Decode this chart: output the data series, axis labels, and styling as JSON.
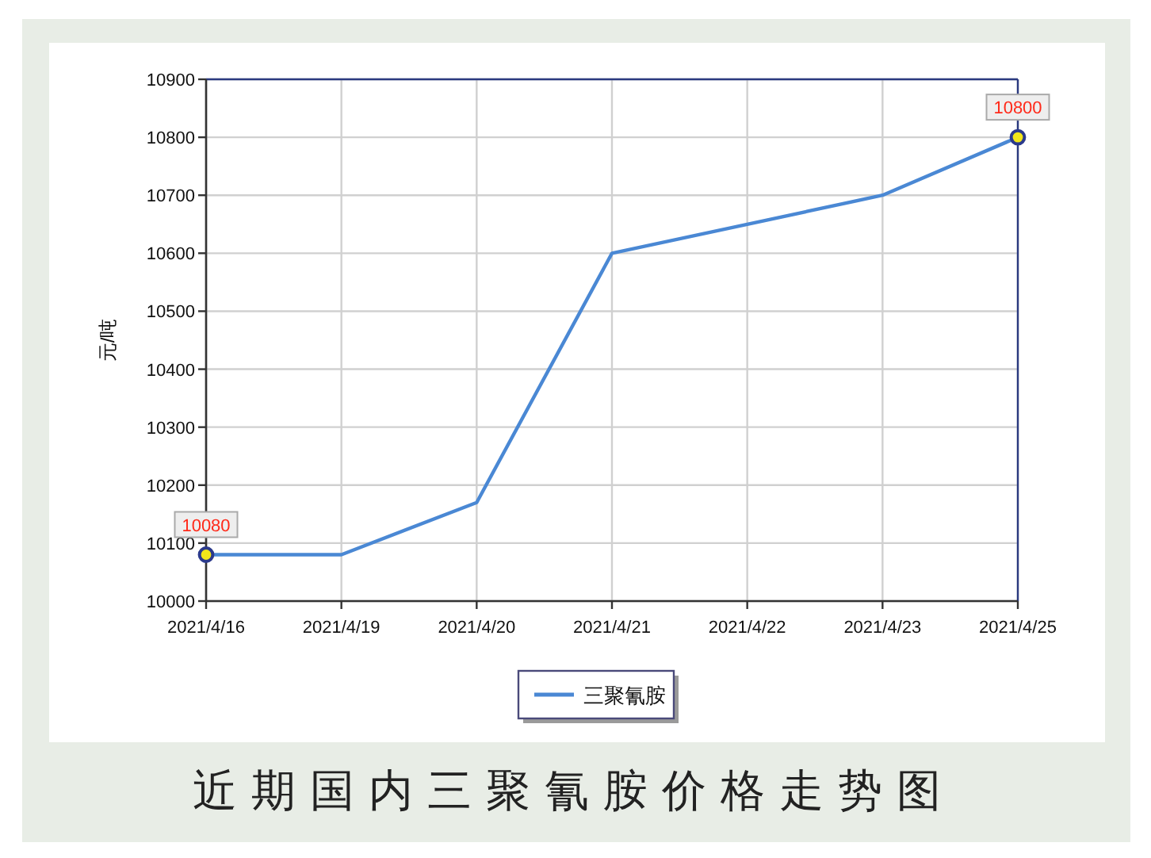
{
  "chart_data": {
    "type": "line",
    "title": "近期国内三聚氰胺价格走势图",
    "ylabel": "元/吨",
    "categories": [
      "2021/4/16",
      "2021/4/19",
      "2021/4/20",
      "2021/4/21",
      "2021/4/22",
      "2021/4/23",
      "2021/4/25"
    ],
    "series": [
      {
        "name": "三聚氰胺",
        "color": "#4a88d4",
        "values": [
          10080,
          10080,
          10170,
          10600,
          10650,
          10700,
          10800
        ],
        "value_labels": [
          "10080",
          null,
          null,
          null,
          null,
          null,
          "10800"
        ]
      }
    ],
    "ylim": [
      10000,
      10900
    ],
    "yticks": [
      10000,
      10100,
      10200,
      10300,
      10400,
      10500,
      10600,
      10700,
      10800,
      10900
    ],
    "grid": true,
    "legend": "bottom",
    "line_style": "solid"
  }
}
